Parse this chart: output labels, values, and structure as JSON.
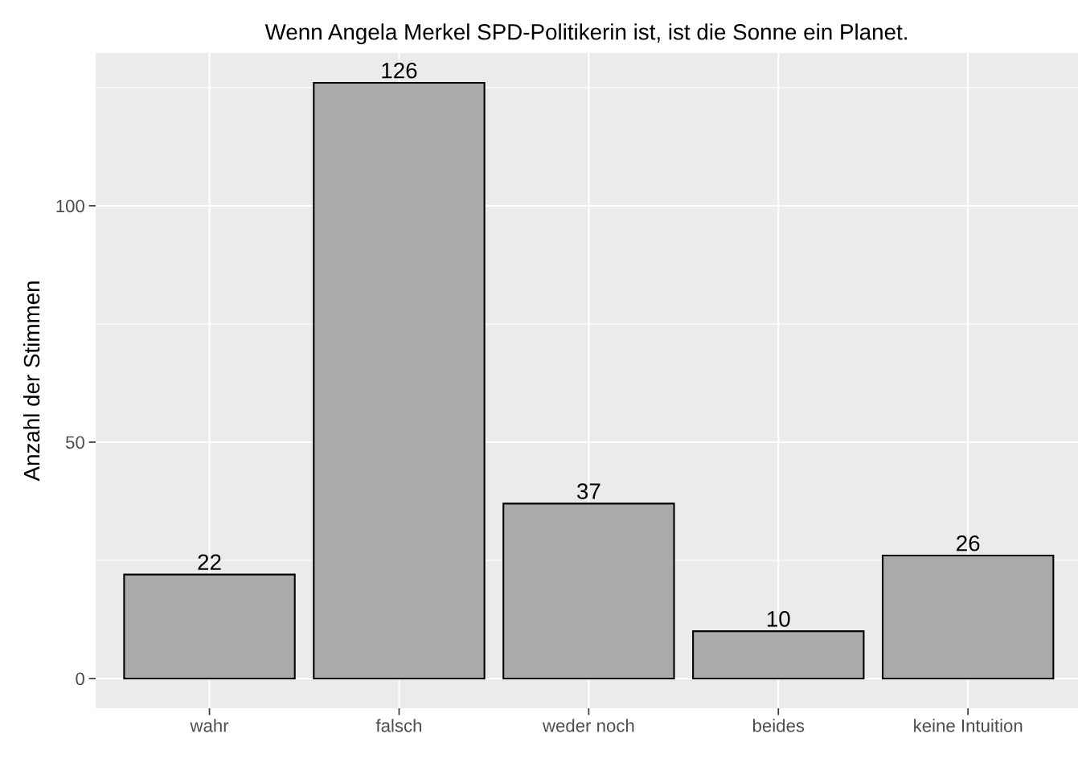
{
  "chart_data": {
    "type": "bar",
    "title": "Wenn Angela Merkel SPD-Politikerin ist, ist die Sonne ein Planet.",
    "ylabel": "Anzahl der Stimmen",
    "categories": [
      "wahr",
      "falsch",
      "weder noch",
      "beides",
      "keine Intuition"
    ],
    "values": [
      22,
      126,
      37,
      10,
      26
    ],
    "color": "#aaaaaa",
    "ylim": [
      -6.3,
      132.3
    ],
    "yticks": [
      0,
      50,
      100
    ],
    "grid": true,
    "data_labels": true
  }
}
